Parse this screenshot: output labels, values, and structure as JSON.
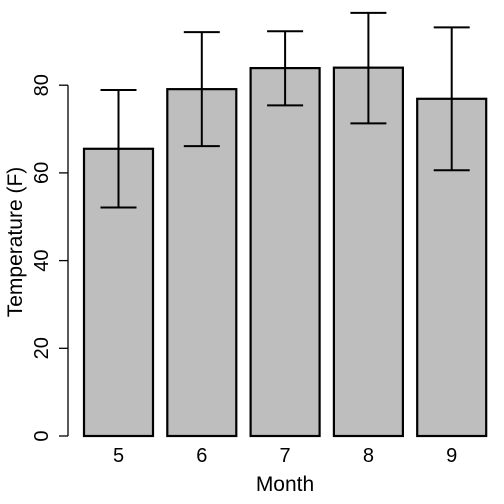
{
  "chart_data": {
    "type": "bar",
    "title": "",
    "xlabel": "Month",
    "ylabel": "Temperature (F)",
    "categories": [
      "5",
      "6",
      "7",
      "8",
      "9"
    ],
    "values": [
      65.5,
      79.1,
      83.9,
      84.0,
      76.9
    ],
    "error_upper": [
      78.9,
      92.1,
      92.3,
      96.5,
      93.2
    ],
    "error_lower": [
      52.1,
      66.1,
      75.4,
      71.3,
      60.6
    ],
    "ylim": [
      0,
      97
    ],
    "yticks": [
      0,
      20,
      40,
      60,
      80
    ],
    "bar_color": "#bebebe",
    "grid": false,
    "legend": "none"
  }
}
